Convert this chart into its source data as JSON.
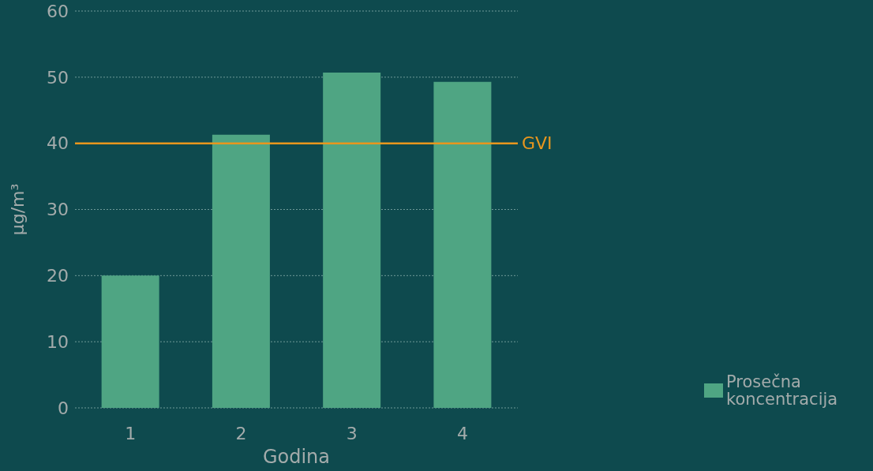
{
  "chart_data": {
    "type": "bar",
    "xlabel": "Godina",
    "ylabel": "µg/m³",
    "categories": [
      "1",
      "2",
      "3",
      "4"
    ],
    "series": [
      {
        "name": "Prosečna koncentracija",
        "color": "#4fa583",
        "values": [
          20.0,
          41.3,
          50.7,
          49.3
        ]
      }
    ],
    "ylim": [
      0,
      60
    ],
    "yticks": [
      0,
      10,
      20,
      30,
      40,
      50,
      60
    ],
    "grid": "y",
    "legend": "bottom right",
    "ref_lines": [
      {
        "axis": "y",
        "value": 40,
        "label": "GVI",
        "color": "#e8961e"
      }
    ]
  }
}
